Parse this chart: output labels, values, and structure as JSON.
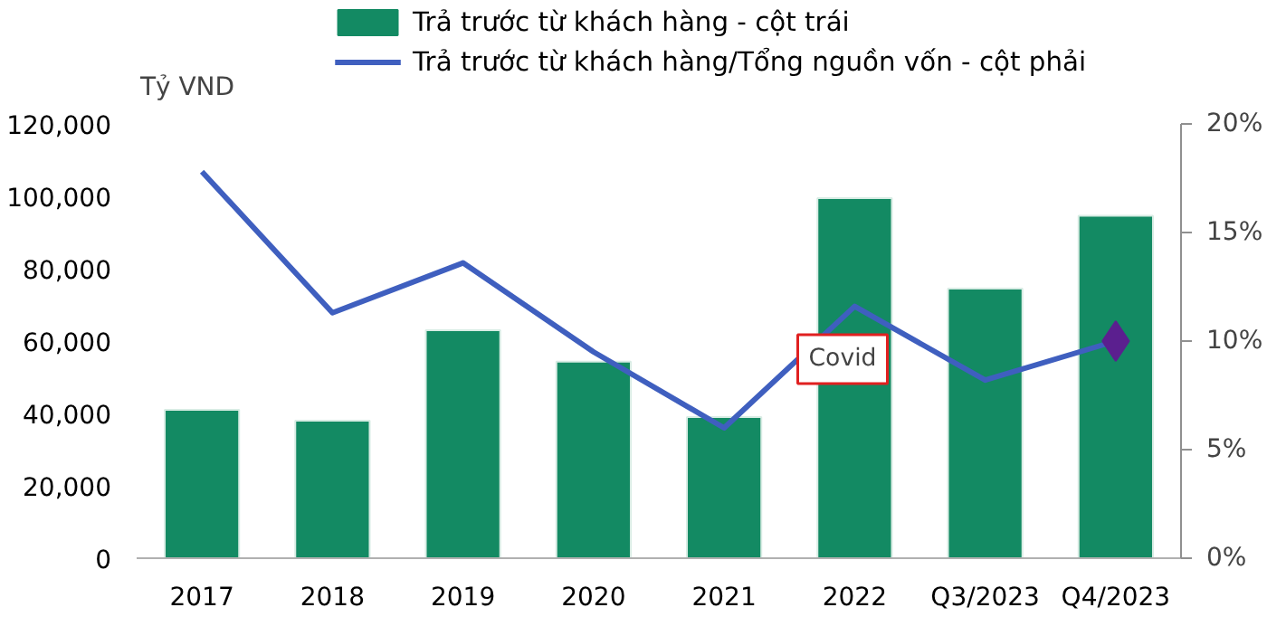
{
  "chart_data": {
    "type": "bar",
    "categories": [
      "2017",
      "2018",
      "2019",
      "2020",
      "2021",
      "2022",
      "Q3/2023",
      "Q4/2023"
    ],
    "ylabel": "Tỷ VND",
    "series": [
      {
        "name": "Trả trước từ khách hàng - cột trái",
        "color": "#138a63",
        "values": [
          41000,
          38000,
          63000,
          54300,
          39000,
          99500,
          74500,
          94600
        ]
      },
      {
        "name": "Trả trước từ khách hàng/Tổng nguồn vốn - cột phải",
        "type": "line",
        "axis": "y2",
        "color": "#3f5fbf",
        "marker": "none",
        "values": [
          17.8,
          11.3,
          13.6,
          9.5,
          6.0,
          11.6,
          8.2,
          10.0
        ]
      },
      {
        "type": "scatter",
        "axis": "y2",
        "color": "#5b1f8f",
        "marker": "diamond",
        "values": [
          null,
          null,
          null,
          null,
          null,
          null,
          null,
          10.0
        ]
      }
    ],
    "ylim": [
      0,
      120000
    ],
    "yticks": [
      {
        "value": 0,
        "label": "0"
      },
      {
        "value": 20000,
        "label": "20,000"
      },
      {
        "value": 40000,
        "label": "40,000"
      },
      {
        "value": 60000,
        "label": "60,000"
      },
      {
        "value": 80000,
        "label": "80,000"
      },
      {
        "value": 100000,
        "label": "100,000"
      },
      {
        "value": 120000,
        "label": "120,000"
      }
    ],
    "y2lim": [
      0,
      20
    ],
    "y2ticks": [
      {
        "value": 0,
        "label": "0%"
      },
      {
        "value": 5,
        "label": "5%"
      },
      {
        "value": 10,
        "label": "10%"
      },
      {
        "value": 15,
        "label": "15%"
      },
      {
        "value": 20,
        "label": "20%"
      }
    ],
    "annotations": [
      "Covid"
    ],
    "legend": "top",
    "grid": false
  }
}
